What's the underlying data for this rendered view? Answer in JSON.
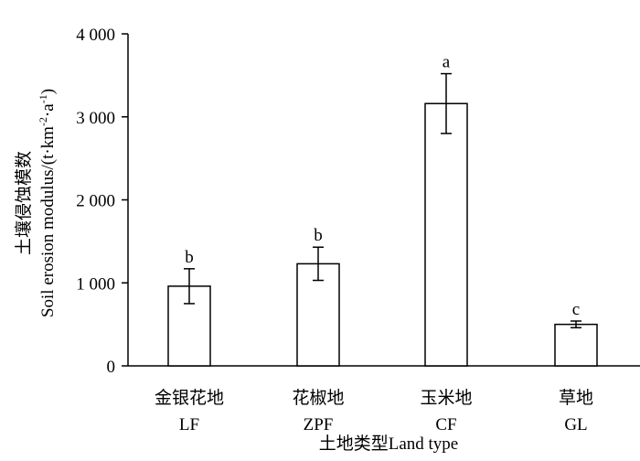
{
  "chart_data": {
    "type": "bar",
    "categories": [
      {
        "zh": "金银花地",
        "en": "LF"
      },
      {
        "zh": "花椒地",
        "en": "ZPF"
      },
      {
        "zh": "玉米地",
        "en": "CF"
      },
      {
        "zh": "草地",
        "en": "GL"
      }
    ],
    "values": [
      960,
      1230,
      3160,
      500
    ],
    "errors": [
      210,
      200,
      360,
      40
    ],
    "significance": [
      "b",
      "b",
      "a",
      "c"
    ],
    "ylim": [
      0,
      4000
    ],
    "yticks": [
      0,
      1000,
      2000,
      3000,
      4000
    ],
    "ytick_labels": [
      "0",
      "1 000",
      "2 000",
      "3 000",
      "4 000"
    ],
    "xlabel": "土地类型Land type",
    "ylabel_zh": "土壤侵蚀模数",
    "ylabel_en_main": "Soil erosion modulus/(t·km",
    "ylabel_en_exp1": "-2",
    "ylabel_en_mid": "·a",
    "ylabel_en_exp2": "-1",
    "ylabel_en_end": ")",
    "bar_fill": "#ffffff",
    "bar_stroke": "#000000",
    "grid": false,
    "legend": "none"
  }
}
